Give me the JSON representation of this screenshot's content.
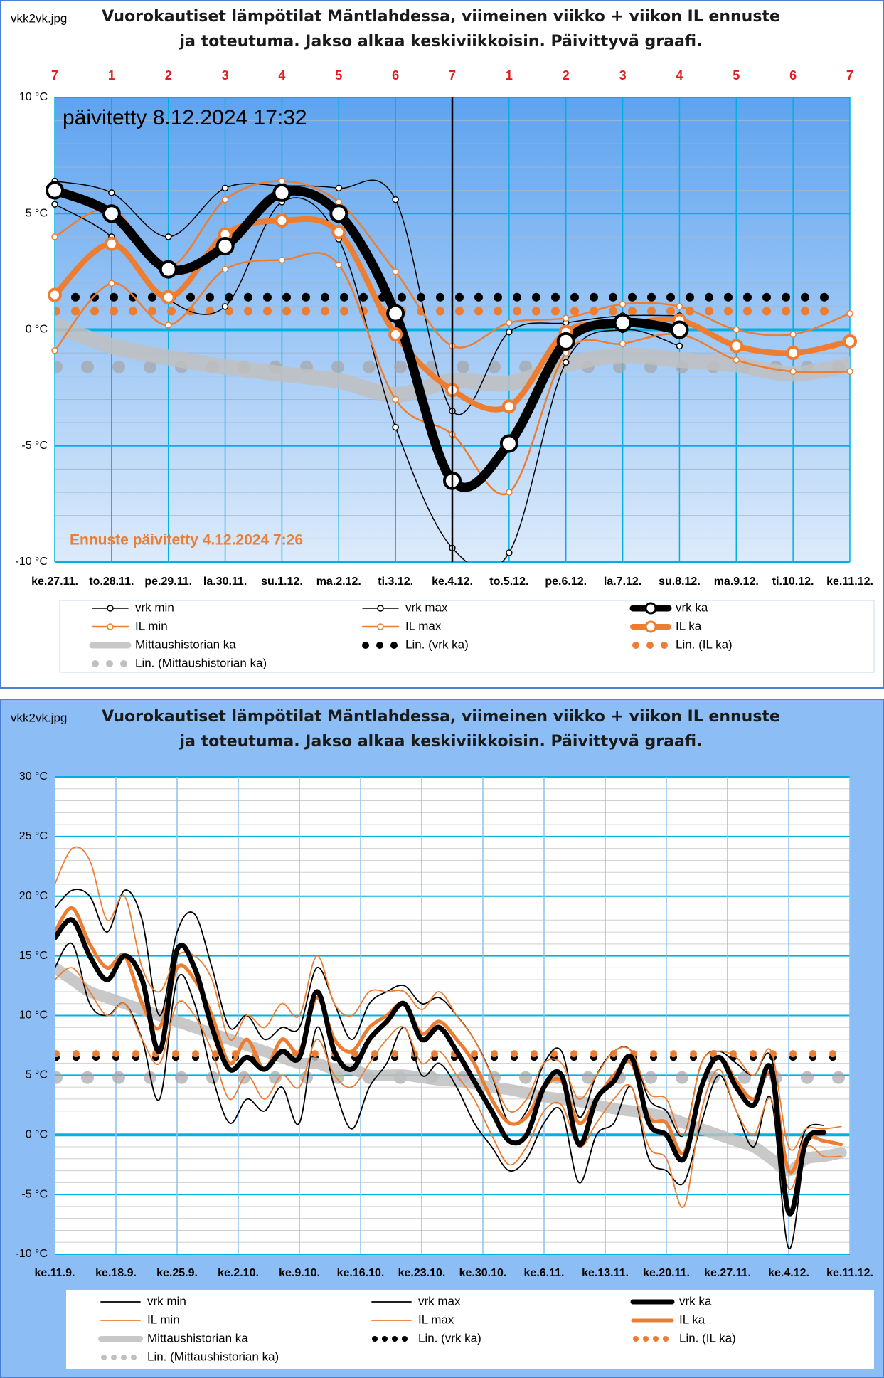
{
  "chart_data": [
    {
      "type": "line",
      "file_label": "vkk2vk.jpg",
      "title": "Vuorokautiset lämpötilat Mäntlahdessa, viimeinen viikko + viikon IL ennuste ja toteutuma. Jakso alkaa keskiviikkoisin. Päivittyvä graafi.",
      "annotations": [
        "päivitetty  8.12.2024  17:32",
        "Ennuste päivitetty 4.12.2024 7:26"
      ],
      "day_numbers": [
        "7",
        "1",
        "2",
        "3",
        "4",
        "5",
        "6",
        "7",
        "1",
        "2",
        "3",
        "4",
        "5",
        "6",
        "7"
      ],
      "categories": [
        "ke.27.11.",
        "to.28.11.",
        "pe.29.11.",
        "la.30.11.",
        "su.1.12.",
        "ma.2.12.",
        "ti.3.12.",
        "ke.4.12.",
        "to.5.12.",
        "pe.6.12.",
        "la.7.12.",
        "su.8.12.",
        "ma.9.12.",
        "ti.10.12.",
        "ke.11.12."
      ],
      "markers": true,
      "vline_index": 7,
      "ylim": [
        -10,
        10
      ],
      "yticks": [
        {
          "value": -10,
          "label": "-10 °C"
        },
        {
          "value": -5,
          "label": "-5 °C"
        },
        {
          "value": 0,
          "label": "0 °C"
        },
        {
          "value": 5,
          "label": "5 °C"
        },
        {
          "value": 10,
          "label": "10 °C"
        }
      ],
      "yminor": [
        -9,
        -8,
        -7,
        -6,
        -4,
        -3,
        -2,
        -1,
        1,
        2,
        3,
        4,
        6,
        7,
        8,
        9
      ],
      "series": [
        {
          "name": "vrk min",
          "color": "#000000",
          "style": "thin",
          "values": [
            5.4,
            4.0,
            1.3,
            1.0,
            5.5,
            3.9,
            -4.2,
            -9.4,
            -9.6,
            -1.4,
            0.0,
            -0.7,
            null,
            null,
            null
          ]
        },
        {
          "name": "vrk max",
          "color": "#000000",
          "style": "thin",
          "values": [
            6.4,
            5.9,
            4.0,
            6.1,
            6.2,
            6.1,
            5.6,
            -3.5,
            -0.1,
            0.3,
            0.6,
            0.6,
            null,
            null,
            null
          ]
        },
        {
          "name": "vrk ka",
          "color": "#000000",
          "style": "thick",
          "values": [
            6.0,
            5.0,
            2.6,
            3.6,
            5.9,
            5.0,
            0.7,
            -6.5,
            -4.9,
            -0.5,
            0.3,
            0.0,
            null,
            null,
            null
          ]
        },
        {
          "name": "IL min",
          "color": "#ed7d31",
          "style": "thin",
          "values": [
            -0.9,
            2.0,
            0.2,
            2.6,
            3.0,
            2.8,
            -3.0,
            -4.5,
            -7.0,
            -1.0,
            -0.6,
            -0.2,
            -1.3,
            -1.8,
            -1.8
          ]
        },
        {
          "name": "IL max",
          "color": "#ed7d31",
          "style": "thin",
          "values": [
            4.0,
            5.2,
            2.7,
            5.6,
            6.4,
            5.5,
            2.5,
            -0.7,
            0.3,
            0.5,
            1.1,
            1.0,
            0.0,
            -0.2,
            0.7
          ]
        },
        {
          "name": "IL ka",
          "color": "#ed7d31",
          "style": "thick",
          "values": [
            1.5,
            3.7,
            1.4,
            4.1,
            4.7,
            4.2,
            -0.2,
            -2.6,
            -3.3,
            -0.1,
            0.2,
            0.4,
            -0.7,
            -1.0,
            -0.5
          ]
        },
        {
          "name": "Mittaushistorian ka",
          "color": "#bfbfbf",
          "style": "band",
          "values": [
            0.2,
            -0.7,
            -1.2,
            -1.6,
            -1.9,
            -2.2,
            -2.8,
            -2.2,
            -2.3,
            -1.5,
            -1.1,
            -1.3,
            -1.5,
            -1.9,
            -1.5
          ]
        }
      ],
      "trendlines": [
        {
          "name": "Lin. (vrk ka)",
          "color": "#000000",
          "value": 1.4
        },
        {
          "name": "Lin. (IL ka)",
          "color": "#ed7d31",
          "value": 0.8
        },
        {
          "name": "Lin. (Mittaushistorian ka)",
          "color": "#a6a6a6",
          "value": -1.6
        }
      ]
    },
    {
      "type": "line",
      "file_label": "vkk2vk.jpg",
      "title": "Vuorokautiset lämpötilat Mäntlahdessa, viimeinen viikko + viikon IL ennuste ja toteutuma. Jakso alkaa keskiviikkoisin. Päivittyvä graafi.",
      "markers": false,
      "x": [
        0,
        2,
        4,
        6,
        8,
        10,
        12,
        14,
        16,
        18,
        20,
        22,
        24,
        26,
        28,
        30,
        32,
        34,
        36,
        38,
        40,
        42,
        44,
        46,
        48,
        50,
        52,
        54,
        56,
        58,
        60,
        62,
        64,
        66,
        68,
        70,
        72,
        74,
        76,
        78,
        80,
        82,
        84,
        86,
        88,
        90
      ],
      "xlim": [
        0,
        91
      ],
      "xticks": [
        {
          "value": 0,
          "label": "ke.11.9."
        },
        {
          "value": 7,
          "label": "ke.18.9."
        },
        {
          "value": 14,
          "label": "ke.25.9."
        },
        {
          "value": 21,
          "label": "ke.2.10."
        },
        {
          "value": 28,
          "label": "ke.9.10."
        },
        {
          "value": 35,
          "label": "ke.16.10."
        },
        {
          "value": 42,
          "label": "ke.23.10."
        },
        {
          "value": 49,
          "label": "ke.30.10."
        },
        {
          "value": 56,
          "label": "ke.6.11."
        },
        {
          "value": 63,
          "label": "ke.13.11."
        },
        {
          "value": 70,
          "label": "ke.20.11."
        },
        {
          "value": 77,
          "label": "ke.27.11."
        },
        {
          "value": 84,
          "label": "ke.4.12."
        },
        {
          "value": 91,
          "label": "ke.11.12."
        }
      ],
      "ylim": [
        -10,
        30
      ],
      "yticks": [
        {
          "value": -10,
          "label": "-10 °C"
        },
        {
          "value": -5,
          "label": "-5 °C"
        },
        {
          "value": 0,
          "label": "0 °C"
        },
        {
          "value": 5,
          "label": "5 °C"
        },
        {
          "value": 10,
          "label": "10 °C"
        },
        {
          "value": 15,
          "label": "15 °C"
        },
        {
          "value": 20,
          "label": "20 °C"
        },
        {
          "value": 25,
          "label": "25 °C"
        },
        {
          "value": 30,
          "label": "30 °C"
        }
      ],
      "yminor": [
        -9,
        -8,
        -7,
        -6,
        -4,
        -3,
        -2,
        -1,
        1,
        2,
        3,
        4,
        6,
        7,
        8,
        9,
        11,
        12,
        13,
        14,
        16,
        17,
        18,
        19,
        21,
        22,
        23,
        24,
        26,
        27,
        28,
        29
      ],
      "series": [
        {
          "name": "vrk min",
          "color": "#000000",
          "style": "thin",
          "values": [
            14,
            16,
            11,
            10,
            11,
            8,
            3,
            13,
            11,
            5,
            1,
            3,
            2,
            4,
            1,
            9,
            4,
            0.5,
            4,
            6,
            9,
            5,
            6,
            4,
            1,
            -1,
            -3,
            -2,
            1,
            2,
            -4,
            0,
            1,
            4,
            -2,
            -3,
            -4,
            1,
            5,
            2,
            -1,
            3,
            -9.5,
            -1,
            -0.5,
            null
          ]
        },
        {
          "name": "vrk max",
          "color": "#000000",
          "style": "thin",
          "values": [
            19,
            20.5,
            20,
            17,
            20.5,
            18,
            10,
            17,
            18.5,
            14,
            9,
            10,
            8,
            9,
            9,
            14,
            11,
            8,
            11,
            12,
            12.5,
            11,
            11.5,
            10,
            8,
            5,
            1,
            2,
            6,
            7,
            1.5,
            5,
            7,
            7,
            3,
            2,
            0,
            6,
            7,
            6,
            5,
            6.5,
            -3,
            0.5,
            0.8,
            null
          ]
        },
        {
          "name": "vrk ka",
          "color": "#000000",
          "style": "thick",
          "values": [
            16.5,
            18,
            15,
            13,
            15,
            13,
            7,
            15.5,
            14,
            9,
            5.5,
            6.5,
            5.5,
            7,
            6.5,
            12,
            7,
            5.5,
            8,
            9.5,
            11,
            8,
            9,
            7,
            4.5,
            2,
            -0.5,
            0,
            4,
            5,
            -0.8,
            3,
            4.5,
            6.5,
            1,
            0,
            -2,
            4,
            6.5,
            4,
            2.5,
            5.5,
            -6.5,
            -0.5,
            0.2,
            null
          ]
        },
        {
          "name": "IL min",
          "color": "#ed7d31",
          "style": "thin",
          "values": [
            13,
            14,
            12,
            10,
            11,
            8,
            6,
            11,
            10,
            7,
            3,
            5,
            3,
            5,
            4,
            8,
            5,
            4,
            6,
            8,
            9,
            6,
            7,
            5,
            3,
            0,
            -2.5,
            -1,
            2,
            2.5,
            -1,
            1,
            3,
            4,
            -1,
            -2,
            -6,
            2,
            5.5,
            2,
            0,
            3,
            -4.5,
            -1,
            -1.8,
            -1.8
          ]
        },
        {
          "name": "IL max",
          "color": "#ed7d31",
          "style": "thin",
          "values": [
            21,
            24,
            23,
            18,
            20,
            14,
            12,
            15,
            15,
            13,
            8,
            10,
            9,
            11,
            10,
            15,
            11,
            10,
            12,
            12,
            12,
            10.5,
            12,
            10,
            8,
            5,
            2,
            3,
            6,
            6,
            3,
            5,
            7,
            7,
            3.5,
            3,
            0,
            6,
            7,
            6.5,
            5,
            7,
            -1,
            0.5,
            0.5,
            0.7
          ]
        },
        {
          "name": "IL ka",
          "color": "#ed7d31",
          "style": "thick",
          "values": [
            17,
            19,
            16,
            14,
            15,
            11,
            9,
            14,
            13,
            10,
            6,
            8,
            5.5,
            8,
            7,
            11.5,
            8,
            7,
            9,
            10,
            11,
            8.5,
            9.5,
            8,
            6,
            3,
            1,
            1.5,
            4,
            4.5,
            1,
            3,
            5,
            6,
            1.5,
            1,
            -1.5,
            4,
            6.5,
            4.5,
            3,
            5,
            -3,
            -0.3,
            -0.5,
            -0.8
          ]
        },
        {
          "name": "Mittaushistorian ka",
          "color": "#bfbfbf",
          "style": "band",
          "values": [
            14,
            13,
            12,
            11.5,
            11,
            10.5,
            10,
            9.5,
            9,
            8.5,
            8,
            7.5,
            7,
            6.5,
            6,
            6,
            5.5,
            5.5,
            5,
            5,
            5,
            4.8,
            4.6,
            4.5,
            4.3,
            4,
            3.8,
            3.5,
            3.2,
            3,
            2.8,
            2.5,
            2.2,
            2,
            1.8,
            1.5,
            1,
            0.5,
            0,
            -0.5,
            -1,
            -2,
            -3,
            -2,
            -1.8,
            -1.5
          ]
        }
      ],
      "trendlines": [
        {
          "name": "Lin. (vrk ka)",
          "color": "#000000",
          "value": 6.5
        },
        {
          "name": "Lin. (IL ka)",
          "color": "#ed7d31",
          "value": 6.8
        },
        {
          "name": "Lin. (Mittaushistorian ka)",
          "color": "#a6a6a6",
          "value": 4.8
        }
      ]
    }
  ]
}
